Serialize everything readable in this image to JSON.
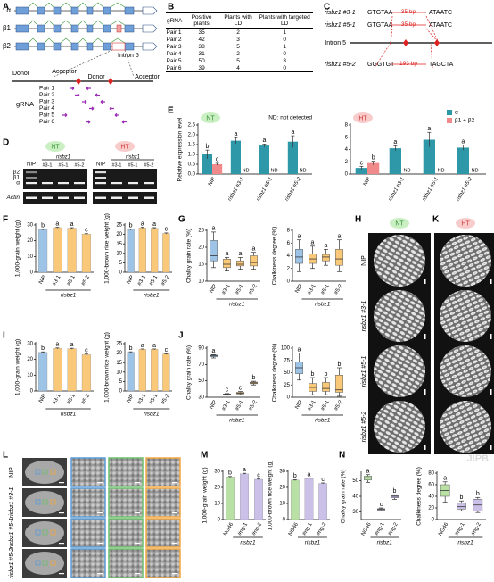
{
  "panel_labels": [
    "A",
    "B",
    "C",
    "D",
    "E",
    "F",
    "G",
    "H",
    "I",
    "J",
    "K",
    "L",
    "M",
    "N"
  ],
  "gene_model": {
    "isoforms": [
      "α",
      "β1",
      "β2"
    ],
    "intron": "Intron 5",
    "sites": [
      "Donor",
      "Acceptor",
      "Donor",
      "Acceptor"
    ],
    "grna_label": "gRNA",
    "pairs": [
      "Pair 1",
      "Pair 2",
      "Pair 3",
      "Pair 4",
      "Pair 5",
      "Pair 6"
    ]
  },
  "table": {
    "header": [
      "gRNA",
      "Positive plants",
      "Plants with LD",
      "Plants with targeted LD"
    ],
    "rows": [
      [
        "Pair 1",
        35,
        2,
        1
      ],
      [
        "Pair 2",
        42,
        3,
        0
      ],
      [
        "Pair 3",
        38,
        5,
        1
      ],
      [
        "Pair 4",
        31,
        2,
        0
      ],
      [
        "Pair 5",
        50,
        5,
        3
      ],
      [
        "Pair 6",
        39,
        4,
        0
      ]
    ]
  },
  "deletion": {
    "lines": [
      {
        "label": "risbz1 #3-1",
        "left": "GTGTAA",
        "gap": "35 bp",
        "right": "ATAATC"
      },
      {
        "label": "risbz1 #5-1",
        "left": "GTGTAA",
        "gap": "35 bp",
        "right": "ATAATC"
      },
      {
        "label": "risbz1 #5-2",
        "left": "GGGTGT",
        "gap": "193 bp",
        "right": "TAGCTA"
      }
    ],
    "intron": "Intron 5"
  },
  "gel": {
    "conditions": [
      "NT",
      "HT"
    ],
    "wild_type": "NIP",
    "group": "risbz1",
    "lanes": [
      "#3-1",
      "#5-1",
      "#5-2"
    ],
    "bands": [
      "β2",
      "β1",
      "α"
    ],
    "control": "Actin"
  },
  "grain_images": {
    "conditions": [
      "NT",
      "HT"
    ],
    "lines": [
      "NIP",
      "risbz1 #3-1",
      "risbz1 #5-1",
      "risbz1 #5-2"
    ]
  },
  "sem": {
    "lines": [
      "NIP",
      "risbz1 #3-1",
      "risbz1 #5-1",
      "risbz1 #5-2"
    ]
  },
  "watermark": "JIPB",
  "chart_data": [
    {
      "type": "bar",
      "tag": "NT",
      "note": "ND:  not detected",
      "nd_label": "ND",
      "ylabel": "Relative expression level",
      "categories": [
        "NIP",
        "risbz1 #3-1",
        "risbz1 #5-1",
        "risbz1 #5-2"
      ],
      "ylim": [
        0,
        2.5
      ],
      "yticks": [
        {
          "value": 0,
          "label": "0.0"
        },
        0.5,
        {
          "value": 1,
          "label": "1.0"
        },
        1.5,
        {
          "value": 2,
          "label": "2.0"
        },
        2.5
      ],
      "series": [
        {
          "name": "α",
          "color": "#2e97a8",
          "values": [
            1.0,
            1.7,
            1.45,
            1.65
          ],
          "errors": [
            0.22,
            0.15,
            0.08,
            0.3
          ],
          "letters": [
            "b",
            "a",
            "a",
            "a"
          ]
        },
        {
          "name": "β1 + β2",
          "color": "#f08a8a",
          "values": [
            0.5,
            null,
            null,
            null
          ],
          "errors": [
            0.05,
            null,
            null,
            null
          ],
          "letters": [
            "c",
            null,
            null,
            null
          ]
        }
      ]
    },
    {
      "type": "bar",
      "tag": "HT",
      "nd_label": "ND",
      "legend": "upper right",
      "ylabel": "",
      "categories": [
        "NIP",
        "risbz1 #3-1",
        "risbz1 #5-1",
        "risbz1 #5-2"
      ],
      "ylim": [
        0,
        8
      ],
      "yticks": [
        0,
        2,
        4,
        6,
        8
      ],
      "series": [
        {
          "name": "α",
          "color": "#2e97a8",
          "values": [
            1.0,
            4.2,
            5.6,
            4.3
          ],
          "errors": [
            0.25,
            0.4,
            1.2,
            0.4
          ],
          "letters": [
            "c",
            "a",
            "a",
            "a"
          ]
        },
        {
          "name": "β1 + β2",
          "color": "#f08a8a",
          "values": [
            1.8,
            null,
            null,
            null
          ],
          "errors": [
            0.3,
            null,
            null,
            null
          ],
          "letters": [
            "b",
            null,
            null,
            null
          ]
        }
      ]
    },
    {
      "type": "bar",
      "ylabel": "1,000-grain weight (g)",
      "categories": [
        "NIP",
        "#3-1",
        "#5-1",
        "#5-2"
      ],
      "group": "risbz1",
      "ylim": [
        0,
        30
      ],
      "yticks": [
        0,
        10,
        20,
        30
      ],
      "values": [
        27.0,
        28.3,
        28.0,
        24.2
      ],
      "errors": [
        0.3,
        0.3,
        0.3,
        0.3
      ],
      "colors": [
        "#9dc3e6",
        "#f9c879",
        "#f9c879",
        "#f9c879"
      ],
      "letters": [
        "b",
        "a",
        "a",
        "c"
      ]
    },
    {
      "type": "bar",
      "ylabel": "1,000-brown rice weight (g)",
      "categories": [
        "NIP",
        "#3-1",
        "#5-1",
        "#5-2"
      ],
      "group": "risbz1",
      "ylim": [
        0,
        25
      ],
      "yticks": [
        0,
        5,
        10,
        15,
        20,
        25
      ],
      "values": [
        22.5,
        23.5,
        23.3,
        20.5
      ],
      "errors": [
        0.3,
        0.3,
        0.3,
        0.3
      ],
      "colors": [
        "#9dc3e6",
        "#f9c879",
        "#f9c879",
        "#f9c879"
      ],
      "letters": [
        "b",
        "a",
        "a",
        "c"
      ]
    },
    {
      "type": "box",
      "ylabel": "Chalky grain rate (%)",
      "categories": [
        "NIP",
        "#3-1",
        "#5-1",
        "#5-2"
      ],
      "group": "risbz1",
      "ylim": [
        10,
        25
      ],
      "yticks": [
        10,
        15,
        20,
        25
      ],
      "colors": [
        "#9dc3e6",
        "#f9c879",
        "#f9c879",
        "#f9c879"
      ],
      "min": [
        14,
        13,
        13.5,
        13.5
      ],
      "q1": [
        16,
        14,
        14.5,
        14.5
      ],
      "median": [
        17.5,
        15,
        15,
        15.5
      ],
      "q3": [
        22,
        16.5,
        16,
        17.5
      ],
      "max": [
        24.5,
        17,
        17,
        18.5
      ],
      "letters": [
        "a",
        "a",
        "a",
        "a"
      ]
    },
    {
      "type": "box",
      "ylabel": "Chalkiness degree (%)",
      "categories": [
        "NIP",
        "#3-1",
        "#5-1",
        "#5-2"
      ],
      "group": "risbz1",
      "ylim": [
        0,
        8
      ],
      "yticks": [
        0,
        2,
        4,
        6,
        8
      ],
      "colors": [
        "#9dc3e6",
        "#f9c879",
        "#f9c879",
        "#f9c879"
      ],
      "min": [
        1.5,
        2,
        2.5,
        1.5
      ],
      "q1": [
        2.8,
        2.8,
        3.2,
        2.5
      ],
      "median": [
        3.8,
        3.5,
        3.8,
        3.5
      ],
      "q3": [
        5,
        4.3,
        4.2,
        5
      ],
      "max": [
        6.5,
        5.5,
        5,
        6.5
      ],
      "letters": [
        "a",
        "a",
        "a",
        "a"
      ]
    },
    {
      "type": "bar",
      "ylabel": "1,000-grain weight (g)",
      "categories": [
        "NIP",
        "#3-1",
        "#5-1",
        "#5-2"
      ],
      "group": "risbz1",
      "ylim": [
        0,
        30
      ],
      "yticks": [
        0,
        10,
        20,
        30
      ],
      "values": [
        24.5,
        27.0,
        26.8,
        23.0
      ],
      "errors": [
        0.3,
        0.3,
        0.3,
        0.4
      ],
      "colors": [
        "#9dc3e6",
        "#f9c879",
        "#f9c879",
        "#f9c879"
      ],
      "letters": [
        "b",
        "a",
        "a",
        "c"
      ]
    },
    {
      "type": "bar",
      "ylabel": "1,000-brown rice weight (g)",
      "categories": [
        "NIP",
        "#3-1",
        "#5-1",
        "#5-2"
      ],
      "group": "risbz1",
      "ylim": [
        0,
        25
      ],
      "yticks": [
        0,
        5,
        10,
        15,
        20,
        25
      ],
      "values": [
        20.5,
        22.0,
        22.0,
        19.5
      ],
      "errors": [
        0.2,
        0.2,
        0.2,
        0.2
      ],
      "colors": [
        "#9dc3e6",
        "#f9c879",
        "#f9c879",
        "#f9c879"
      ],
      "letters": [
        "b",
        "a",
        "a",
        "c"
      ]
    },
    {
      "type": "box",
      "ylabel": "Chalky grain rate (%)",
      "categories": [
        "NIP",
        "#3-1",
        "#5-1",
        "#5-2"
      ],
      "group": "risbz1",
      "ylim": [
        30,
        90
      ],
      "yticks": [
        30,
        50,
        70,
        90
      ],
      "colors": [
        "#9dc3e6",
        "#f9c879",
        "#f9c879",
        "#f9c879"
      ],
      "min": [
        78,
        32.5,
        33,
        45
      ],
      "q1": [
        79.5,
        33,
        34,
        46.5
      ],
      "median": [
        80.5,
        33.5,
        35,
        47.5
      ],
      "q3": [
        81.5,
        34,
        36,
        48.5
      ],
      "max": [
        82,
        34.5,
        37,
        49.5
      ],
      "letters": [
        "a",
        "c",
        "c",
        "b"
      ]
    },
    {
      "type": "box",
      "ylabel": "Chalkiness degree (%)",
      "categories": [
        "NIP",
        "#3-1",
        "#5-1",
        "#5-2"
      ],
      "group": "risbz1",
      "ylim": [
        0,
        100
      ],
      "yticks": [
        0,
        25,
        50,
        75,
        100
      ],
      "colors": [
        "#9dc3e6",
        "#f9c879",
        "#f9c879",
        "#f9c879"
      ],
      "min": [
        35,
        5,
        5,
        2
      ],
      "q1": [
        48,
        12,
        12,
        10
      ],
      "median": [
        60,
        20,
        18,
        15
      ],
      "q3": [
        72,
        28,
        30,
        45
      ],
      "max": [
        90,
        40,
        40,
        60
      ],
      "letters": [
        "a",
        "b",
        "b",
        "b"
      ]
    },
    {
      "type": "bar",
      "ylabel": "1,000-grain weight (g)",
      "categories": [
        "NG46",
        "#ng-1",
        "#ng-2"
      ],
      "group": "risbz1",
      "ylim": [
        0,
        30
      ],
      "yticks": [
        0,
        10,
        20,
        30
      ],
      "values": [
        26.5,
        28.5,
        25.0
      ],
      "errors": [
        0.3,
        0.3,
        0.3
      ],
      "colors": [
        "#b9e0a5",
        "#cbc0e8",
        "#cbc0e8"
      ],
      "letters": [
        "b",
        "a",
        "c"
      ]
    },
    {
      "type": "bar",
      "ylabel": "1,000-brown rice weight (g)",
      "categories": [
        "NG46",
        "#ng-1",
        "#ng-2"
      ],
      "group": "risbz1",
      "ylim": [
        0,
        30
      ],
      "yticks": [
        0,
        10,
        20,
        30
      ],
      "values": [
        24.5,
        25.5,
        22.5
      ],
      "errors": [
        0.3,
        0.3,
        0.3
      ],
      "colors": [
        "#b9e0a5",
        "#cbc0e8",
        "#cbc0e8"
      ],
      "letters": [
        "b",
        "a",
        "c"
      ]
    },
    {
      "type": "box",
      "ylabel": "Chalky grain rate (%)",
      "categories": [
        "NG46",
        "#ng-1",
        "#ng-2"
      ],
      "group": "risbz1",
      "ylim": [
        25,
        55
      ],
      "yticks": [
        30,
        40,
        50
      ],
      "colors": [
        "#b9e0a5",
        "#cbc0e8",
        "#cbc0e8"
      ],
      "min": [
        49,
        30.5,
        38
      ],
      "q1": [
        50.5,
        31,
        39
      ],
      "median": [
        52,
        31.5,
        40
      ],
      "q3": [
        53,
        32,
        40.5
      ],
      "max": [
        54,
        32.5,
        41
      ],
      "letters": [
        "a",
        "c",
        "b"
      ]
    },
    {
      "type": "box",
      "ylabel": "Chalkiness degree (%)",
      "categories": [
        "NG46",
        "#ng-1",
        "#ng-2"
      ],
      "group": "risbz1",
      "ylim": [
        0,
        80
      ],
      "yticks": [
        0,
        20,
        40,
        60,
        80
      ],
      "colors": [
        "#b9e0a5",
        "#cbc0e8",
        "#cbc0e8"
      ],
      "min": [
        30,
        15,
        12
      ],
      "q1": [
        40,
        18,
        15
      ],
      "median": [
        50,
        22,
        25
      ],
      "q3": [
        60,
        28,
        35
      ],
      "max": [
        65,
        32,
        38
      ],
      "letters": [
        "a",
        "b",
        "b"
      ]
    }
  ]
}
